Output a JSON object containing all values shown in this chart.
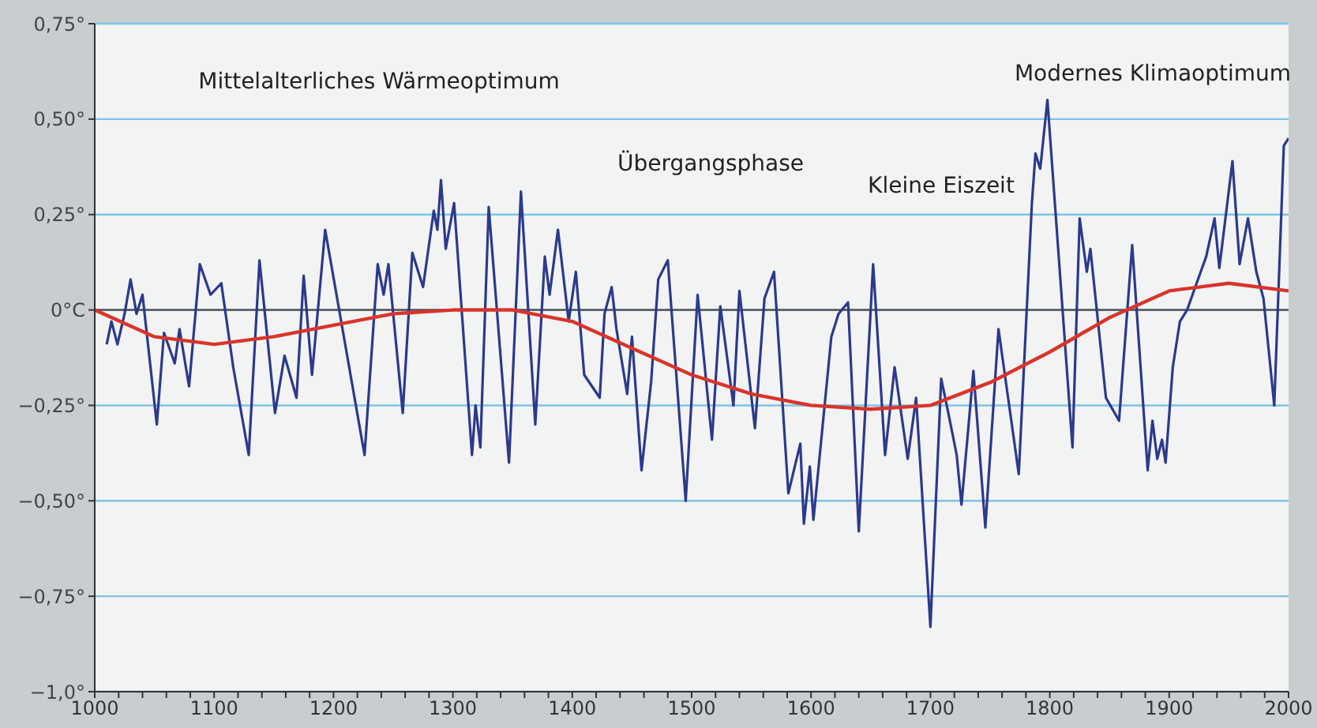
{
  "chart_data": {
    "type": "line",
    "xlim": [
      1000,
      2000
    ],
    "ylim": [
      -1.0,
      0.75
    ],
    "xticks": [
      1000,
      {
        "value": 1020,
        "label": null
      },
      {
        "value": 1040,
        "label": null
      },
      {
        "value": 1060,
        "label": null
      },
      {
        "value": 1080,
        "label": null
      },
      1100,
      {
        "value": 1120,
        "label": null
      },
      {
        "value": 1140,
        "label": null
      },
      {
        "value": 1160,
        "label": null
      },
      {
        "value": 1180,
        "label": null
      },
      1200,
      {
        "value": 1220,
        "label": null
      },
      {
        "value": 1240,
        "label": null
      },
      {
        "value": 1260,
        "label": null
      },
      {
        "value": 1280,
        "label": null
      },
      1300,
      {
        "value": 1320,
        "label": null
      },
      {
        "value": 1340,
        "label": null
      },
      {
        "value": 1360,
        "label": null
      },
      {
        "value": 1380,
        "label": null
      },
      1400,
      {
        "value": 1420,
        "label": null
      },
      {
        "value": 1440,
        "label": null
      },
      {
        "value": 1460,
        "label": null
      },
      {
        "value": 1480,
        "label": null
      },
      1500,
      {
        "value": 1520,
        "label": null
      },
      {
        "value": 1540,
        "label": null
      },
      {
        "value": 1560,
        "label": null
      },
      {
        "value": 1580,
        "label": null
      },
      1600,
      {
        "value": 1620,
        "label": null
      },
      {
        "value": 1640,
        "label": null
      },
      {
        "value": 1660,
        "label": null
      },
      {
        "value": 1680,
        "label": null
      },
      1700,
      {
        "value": 1720,
        "label": null
      },
      {
        "value": 1740,
        "label": null
      },
      {
        "value": 1760,
        "label": null
      },
      {
        "value": 1780,
        "label": null
      },
      1800,
      {
        "value": 1820,
        "label": null
      },
      {
        "value": 1840,
        "label": null
      },
      {
        "value": 1860,
        "label": null
      },
      {
        "value": 1880,
        "label": null
      },
      1900,
      {
        "value": 1920,
        "label": null
      },
      {
        "value": 1940,
        "label": null
      },
      {
        "value": 1960,
        "label": null
      },
      {
        "value": 1980,
        "label": null
      },
      2000
    ],
    "yticks": [
      {
        "value": 0.75,
        "label": "0,75°"
      },
      {
        "value": 0.5,
        "label": "0,50°"
      },
      {
        "value": 0.25,
        "label": "0,25°"
      },
      {
        "value": 0,
        "label": "0°C"
      },
      {
        "value": -0.25,
        "label": "−0,25°"
      },
      {
        "value": -0.5,
        "label": "−0,50°"
      },
      {
        "value": -0.75,
        "label": "−0,75°"
      },
      {
        "value": -1.0,
        "label": "−1,0°"
      }
    ],
    "grid": "y",
    "marker": "none",
    "line_style": "solid",
    "ref_lines": [
      {
        "axis": "y",
        "value": 0,
        "color": "#555555"
      }
    ],
    "annotations": [
      "Mittelalterliches Wärmeoptimum",
      "Übergangsphase",
      "Kleine Eiszeit",
      "Modernes Klimaoptimum"
    ],
    "series": [
      {
        "color": "#2b3a8c",
        "x": [
          1010,
          1014,
          1019,
          1025,
          1030,
          1035,
          1040,
          1052,
          1058,
          1067,
          1071,
          1079,
          1088,
          1097,
          1106,
          1116,
          1129,
          1138,
          1151,
          1159,
          1169,
          1175,
          1182,
          1193,
          1226,
          1237,
          1242,
          1246,
          1258,
          1266,
          1275,
          1284,
          1287,
          1290,
          1294,
          1301,
          1316,
          1319,
          1323,
          1330,
          1347,
          1357,
          1369,
          1377,
          1381,
          1388,
          1397,
          1403,
          1410,
          1423,
          1427,
          1433,
          1437,
          1446,
          1450,
          1458,
          1466,
          1472,
          1480,
          1495,
          1505,
          1517,
          1524,
          1535,
          1540,
          1553,
          1561,
          1569,
          1581,
          1591,
          1594,
          1599,
          1602,
          1617,
          1623,
          1631,
          1640,
          1652,
          1662,
          1670,
          1681,
          1688,
          1700,
          1709,
          1715,
          1722,
          1726,
          1736,
          1746,
          1757,
          1774,
          1785,
          1788,
          1792,
          1798,
          1819,
          1825,
          1831,
          1834,
          1847,
          1858,
          1869,
          1882,
          1886,
          1890,
          1894,
          1897,
          1903,
          1909,
          1915,
          1931,
          1938,
          1942,
          1953,
          1959,
          1966,
          1973,
          1979,
          1988,
          1996,
          2000
        ],
        "values": [
          -0.09,
          -0.03,
          -0.09,
          -0.01,
          0.08,
          -0.01,
          0.04,
          -0.3,
          -0.06,
          -0.14,
          -0.05,
          -0.2,
          0.12,
          0.04,
          0.07,
          -0.15,
          -0.38,
          0.13,
          -0.27,
          -0.12,
          -0.23,
          0.09,
          -0.17,
          0.21,
          -0.38,
          0.12,
          0.04,
          0.12,
          -0.27,
          0.15,
          0.06,
          0.26,
          0.21,
          0.34,
          0.16,
          0.28,
          -0.38,
          -0.25,
          -0.36,
          0.27,
          -0.4,
          0.31,
          -0.3,
          0.14,
          0.04,
          0.21,
          -0.03,
          0.1,
          -0.17,
          -0.23,
          -0.01,
          0.06,
          -0.05,
          -0.22,
          -0.07,
          -0.42,
          -0.19,
          0.08,
          0.13,
          -0.5,
          0.04,
          -0.34,
          0.01,
          -0.25,
          0.05,
          -0.31,
          0.03,
          0.1,
          -0.48,
          -0.35,
          -0.56,
          -0.41,
          -0.55,
          -0.07,
          -0.01,
          0.02,
          -0.58,
          0.12,
          -0.38,
          -0.15,
          -0.39,
          -0.23,
          -0.83,
          -0.18,
          -0.27,
          -0.38,
          -0.51,
          -0.16,
          -0.57,
          -0.05,
          -0.43,
          0.28,
          0.41,
          0.37,
          0.55,
          -0.36,
          0.24,
          0.1,
          0.16,
          -0.23,
          -0.29,
          0.17,
          -0.42,
          -0.29,
          -0.39,
          -0.34,
          -0.4,
          -0.15,
          -0.03,
          0.0,
          0.14,
          0.24,
          0.11,
          0.39,
          0.12,
          0.24,
          0.1,
          0.03,
          -0.25,
          0.43,
          0.45
        ]
      },
      {
        "color": "#d9342b",
        "x": [
          1000,
          1050,
          1100,
          1150,
          1200,
          1250,
          1300,
          1350,
          1400,
          1450,
          1500,
          1550,
          1600,
          1650,
          1700,
          1750,
          1800,
          1850,
          1900,
          1950,
          2000
        ],
        "values": [
          0,
          -0.07,
          -0.09,
          -0.07,
          -0.04,
          -0.01,
          0,
          0,
          -0.03,
          -0.1,
          -0.17,
          -0.22,
          -0.25,
          -0.26,
          -0.25,
          -0.19,
          -0.11,
          -0.02,
          0.05,
          0.07,
          0.05
        ]
      }
    ]
  }
}
